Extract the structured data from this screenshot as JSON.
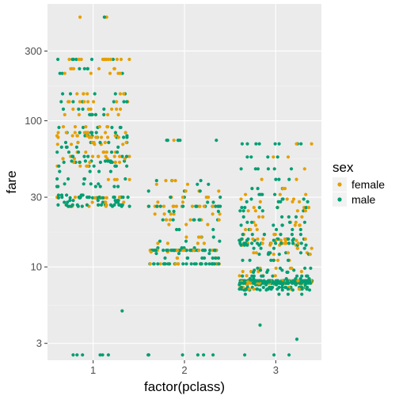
{
  "chart_data": {
    "type": "scatter",
    "subtype": "jitter",
    "xlabel": "factor(pclass)",
    "ylabel": "fare",
    "y_scale": "log10",
    "ylim": [
      2.3,
      630
    ],
    "categories": [
      "1",
      "2",
      "3"
    ],
    "y_ticks": [
      3,
      10,
      30,
      100,
      300
    ],
    "y_tick_labels": [
      "3",
      "10",
      "30",
      "100",
      "300"
    ],
    "grid": true,
    "legend": {
      "title": "sex",
      "position": "right"
    },
    "series": [
      {
        "name": "female",
        "color": "#E69F00",
        "clusters": {
          "1": [
            [
              263,
              12
            ],
            [
              227,
              6
            ],
            [
              211,
              5
            ],
            [
              153,
              6
            ],
            [
              135,
              8
            ],
            [
              120,
              6
            ],
            [
              110,
              5
            ],
            [
              91,
              6
            ],
            [
              83,
              9
            ],
            [
              79,
              6
            ],
            [
              77,
              8
            ],
            [
              71,
              5
            ],
            [
              69,
              5
            ],
            [
              61,
              6
            ],
            [
              57,
              8
            ],
            [
              55,
              5
            ],
            [
              52,
              6
            ],
            [
              49,
              4
            ],
            [
              39.6,
              4
            ],
            [
              30,
              5
            ],
            [
              29.7,
              3
            ],
            [
              27.7,
              4
            ],
            [
              26.5,
              3
            ],
            [
              26,
              3
            ],
            [
              512,
              2
            ]
          ],
          "2": [
            [
              73.5,
              1
            ],
            [
              39,
              3
            ],
            [
              36.75,
              2
            ],
            [
              33,
              3
            ],
            [
              30,
              4
            ],
            [
              27.75,
              2
            ],
            [
              26,
              16
            ],
            [
              23,
              6
            ],
            [
              21,
              6
            ],
            [
              19.5,
              3
            ],
            [
              16,
              3
            ],
            [
              14.5,
              4
            ],
            [
              13,
              18
            ],
            [
              12.65,
              2
            ],
            [
              11.5,
              3
            ],
            [
              10.5,
              9
            ]
          ],
          "3": [
            [
              69.55,
              2
            ],
            [
              56.5,
              2
            ],
            [
              46.9,
              1
            ],
            [
              39.7,
              2
            ],
            [
              34.4,
              2
            ],
            [
              31.3,
              3
            ],
            [
              29.1,
              3
            ],
            [
              27.9,
              3
            ],
            [
              25.5,
              4
            ],
            [
              24.2,
              4
            ],
            [
              22,
              3
            ],
            [
              20.2,
              4
            ],
            [
              19.3,
              4
            ],
            [
              18,
              3
            ],
            [
              16.7,
              4
            ],
            [
              15.5,
              6
            ],
            [
              15.2,
              4
            ],
            [
              14.5,
              8
            ],
            [
              14.1,
              4
            ],
            [
              13.4,
              3
            ],
            [
              12.5,
              4
            ],
            [
              12.2,
              3
            ],
            [
              11.1,
              4
            ],
            [
              9.8,
              4
            ],
            [
              9.3,
              4
            ],
            [
              8.7,
              4
            ],
            [
              8.05,
              10
            ],
            [
              7.9,
              14
            ],
            [
              7.75,
              28
            ],
            [
              7.6,
              4
            ],
            [
              7.25,
              6
            ],
            [
              7.05,
              4
            ]
          ]
        }
      },
      {
        "name": "male",
        "color": "#009E73",
        "clusters": {
          "1": [
            [
              512,
              1
            ],
            [
              263,
              6
            ],
            [
              227,
              4
            ],
            [
              211,
              3
            ],
            [
              153,
              5
            ],
            [
              135,
              6
            ],
            [
              120,
              4
            ],
            [
              110,
              5
            ],
            [
              90,
              6
            ],
            [
              83,
              8
            ],
            [
              79,
              5
            ],
            [
              77,
              4
            ],
            [
              71,
              6
            ],
            [
              66,
              5
            ],
            [
              61,
              5
            ],
            [
              57,
              6
            ],
            [
              53,
              8
            ],
            [
              52,
              6
            ],
            [
              49,
              6
            ],
            [
              45,
              4
            ],
            [
              40,
              5
            ],
            [
              37,
              4
            ],
            [
              35.5,
              6
            ],
            [
              31,
              5
            ],
            [
              30,
              14
            ],
            [
              29.7,
              8
            ],
            [
              28.5,
              6
            ],
            [
              27.7,
              6
            ],
            [
              26.55,
              14
            ],
            [
              26,
              8
            ],
            [
              5,
              1
            ],
            [
              2.5,
              6
            ]
          ],
          "2": [
            [
              73.5,
              6
            ],
            [
              39,
              3
            ],
            [
              36.75,
              2
            ],
            [
              33,
              3
            ],
            [
              30,
              3
            ],
            [
              27.7,
              2
            ],
            [
              26,
              14
            ],
            [
              24,
              3
            ],
            [
              21,
              8
            ],
            [
              18,
              3
            ],
            [
              16,
              2
            ],
            [
              15,
              3
            ],
            [
              13.5,
              4
            ],
            [
              13,
              30
            ],
            [
              12.35,
              3
            ],
            [
              11.5,
              8
            ],
            [
              10.5,
              30
            ],
            [
              2.5,
              6
            ]
          ],
          "3": [
            [
              69.55,
              8
            ],
            [
              56.5,
              4
            ],
            [
              46.9,
              6
            ],
            [
              39.7,
              3
            ],
            [
              34.4,
              4
            ],
            [
              31.3,
              4
            ],
            [
              29.1,
              4
            ],
            [
              27.9,
              4
            ],
            [
              25.5,
              5
            ],
            [
              24.2,
              4
            ],
            [
              22,
              4
            ],
            [
              20.2,
              4
            ],
            [
              19.3,
              4
            ],
            [
              18,
              4
            ],
            [
              16.7,
              6
            ],
            [
              15.5,
              8
            ],
            [
              15.2,
              6
            ],
            [
              14.5,
              14
            ],
            [
              14.1,
              6
            ],
            [
              13.4,
              4
            ],
            [
              12.5,
              4
            ],
            [
              12.2,
              4
            ],
            [
              11.1,
              5
            ],
            [
              9.8,
              4
            ],
            [
              9.5,
              5
            ],
            [
              9.2,
              4
            ],
            [
              8.66,
              10
            ],
            [
              8.3,
              6
            ],
            [
              8.05,
              60
            ],
            [
              7.9,
              40
            ],
            [
              7.75,
              60
            ],
            [
              7.55,
              10
            ],
            [
              7.25,
              18
            ],
            [
              7.05,
              14
            ],
            [
              6.95,
              8
            ],
            [
              6.5,
              4
            ],
            [
              4,
              1
            ],
            [
              3.2,
              1
            ],
            [
              2.5,
              3
            ]
          ]
        }
      }
    ]
  }
}
